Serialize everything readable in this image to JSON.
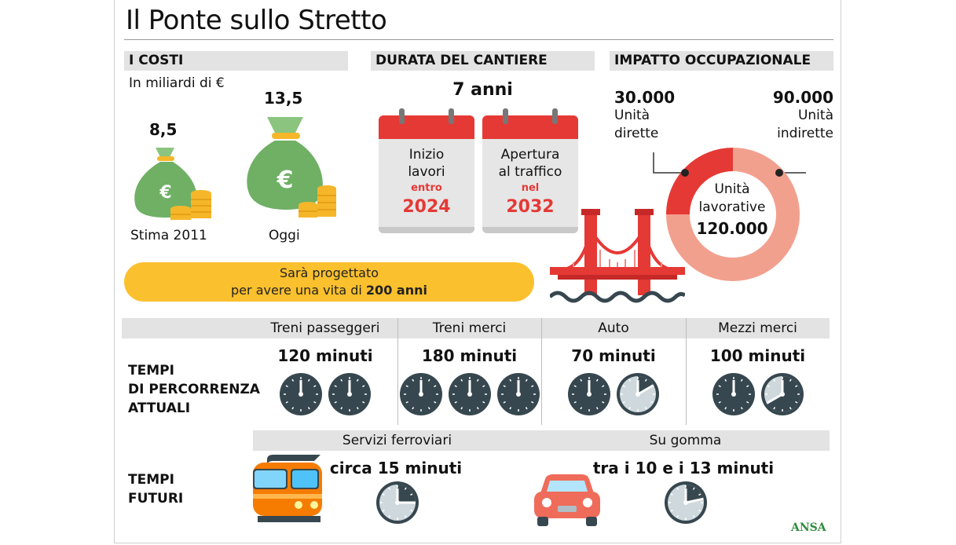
{
  "title": "Il Ponte sullo Stretto",
  "costs": {
    "header": "I COSTI",
    "subtitle": "In miliardi di €",
    "estimate_2011": {
      "value": "8,5",
      "label": "Stima 2011"
    },
    "today": {
      "value": "13,5",
      "label": "Oggi"
    },
    "icon": "money-bag-euro-icon"
  },
  "duration": {
    "header": "DURATA DEL CANTIERE",
    "years": "7 anni",
    "start": {
      "line1": "Inizio",
      "line2": "lavori",
      "qualifier": "entro",
      "year": "2024"
    },
    "opening": {
      "line1": "Apertura",
      "line2": "al traffico",
      "qualifier": "nel",
      "year": "2032"
    }
  },
  "employment": {
    "header": "IMPATTO OCCUPAZIONALE",
    "direct": {
      "value": "30.000",
      "line1": "Unità",
      "line2": "dirette"
    },
    "indirect": {
      "value": "90.000",
      "line1": "Unità",
      "line2": "indirette"
    },
    "center_line1": "Unità",
    "center_line2": "lavorative",
    "total": "120.000",
    "direct_share": 0.25,
    "colors": {
      "direct": "#e53935",
      "indirect": "#f2a08e"
    }
  },
  "lifespan": {
    "line1": "Sarà progettato",
    "line2_prefix": "per avere una vita di ",
    "line2_bold": "200 anni"
  },
  "current_times": {
    "label_lines": [
      "TEMPI",
      "DI PERCORRENZA",
      "ATTUALI"
    ],
    "columns": [
      {
        "name": "Treni passeggeri",
        "time": "120 minuti",
        "minutes": 120
      },
      {
        "name": "Treni merci",
        "time": "180 minuti",
        "minutes": 180
      },
      {
        "name": "Auto",
        "time": "70 minuti",
        "minutes": 70
      },
      {
        "name": "Mezzi merci",
        "time": "100 minuti",
        "minutes": 100
      }
    ]
  },
  "future_times": {
    "label_lines": [
      "TEMPI",
      "FUTURI"
    ],
    "rail": {
      "name": "Servizi ferroviari",
      "time": "circa 15 minuti",
      "minutes": 15,
      "icon": "train-icon"
    },
    "road": {
      "name": "Su gomma",
      "time": "tra i 10 e i 13 minuti",
      "minutes": 13,
      "icon": "car-icon"
    }
  },
  "credit": "ANSA"
}
